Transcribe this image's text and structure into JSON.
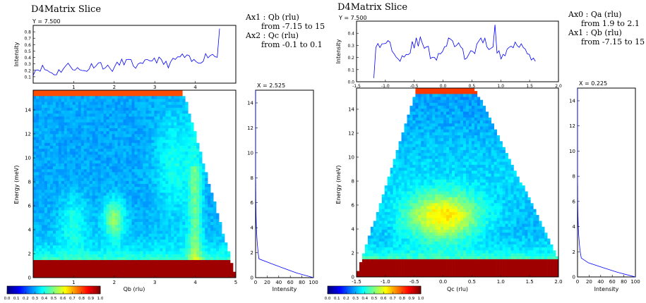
{
  "panels": [
    {
      "title": "D4Matrix Slice",
      "cut_label": "Y = 7.500",
      "side_cut_label": "X = 2.525",
      "axis_info": [
        {
          "name": "Ax1 : Qb (rlu)",
          "range": "from -7.15 to 15"
        },
        {
          "name": "Ax2 : Qc (rlu)",
          "range": "from -0.1 to 0.1"
        }
      ],
      "top_ylabel": "Intensity",
      "main_xlabel": "Qb (rlu)",
      "main_ylabel": "Energy (meV)",
      "side_xlabel": "Intensity",
      "colorbar_labels": [
        "0.0",
        "0.1",
        "0.2",
        "0.3",
        "0.4",
        "0.5",
        "0.6",
        "0.7",
        "0.8",
        "0.9",
        "1.0"
      ],
      "top_ytick_labels": [
        "0.1",
        "0.2",
        "0.3",
        "0.4",
        "0.5",
        "0.6",
        "0.7",
        "0.8"
      ],
      "top_xtick_labels": [
        "1",
        "2",
        "3",
        "4"
      ],
      "main_ytick_labels": [
        "0",
        "2",
        "4",
        "6",
        "8",
        "10",
        "12",
        "14"
      ],
      "main_xtick_labels": [
        "1",
        "2",
        "3",
        "4",
        "5"
      ],
      "side_ytick_labels": [
        "0",
        "2",
        "4",
        "6",
        "8",
        "10",
        "12",
        "14"
      ],
      "side_xtick_labels": [
        "0",
        "20",
        "40",
        "60",
        "80",
        "100"
      ]
    },
    {
      "title": "D4Matrix Slice",
      "cut_label": "Y = 7.500",
      "side_cut_label": "X = 0.225",
      "axis_info": [
        {
          "name": "Ax0 : Qa (rlu)",
          "range": "from 1.9 to 2.1"
        },
        {
          "name": "Ax1 : Qb (rlu)",
          "range": "from -7.15 to 15"
        }
      ],
      "top_ylabel": "Intensity",
      "main_xlabel": "Qc (rlu)",
      "main_ylabel": "Energy (meV)",
      "side_xlabel": "Intensity",
      "colorbar_labels": [
        "0.0",
        "0.1",
        "0.2",
        "0.3",
        "0.4",
        "0.5",
        "0.6",
        "0.7",
        "0.8",
        "0.9",
        "1.0"
      ],
      "top_ytick_labels": [
        "0.0",
        "0.1",
        "0.2",
        "0.3",
        "0.4"
      ],
      "top_xtick_labels": [
        "-1.5",
        "-1.0",
        "-0.5",
        "0.0",
        "0.5",
        "1.0",
        "1.5",
        "2.0"
      ],
      "main_ytick_labels": [
        "0",
        "2",
        "4",
        "6",
        "8",
        "10",
        "12",
        "14"
      ],
      "main_xtick_labels": [
        "-1.5",
        "-1.0",
        "-0.5",
        "0.0",
        "0.5",
        "1.0",
        "1.5",
        "2.0"
      ],
      "side_ytick_labels": [
        "0",
        "2",
        "4",
        "6",
        "8",
        "10",
        "12",
        "14"
      ],
      "side_xtick_labels": [
        "0",
        "20",
        "40",
        "60",
        "80",
        "100"
      ]
    }
  ],
  "colors": {
    "line": "#0000ff",
    "bragg_band": "#8b0000",
    "jet": [
      "#00007f",
      "#0000ff",
      "#007fff",
      "#00ffff",
      "#7fff7f",
      "#ffff00",
      "#ff7f00",
      "#ff0000",
      "#7f0000"
    ]
  }
}
